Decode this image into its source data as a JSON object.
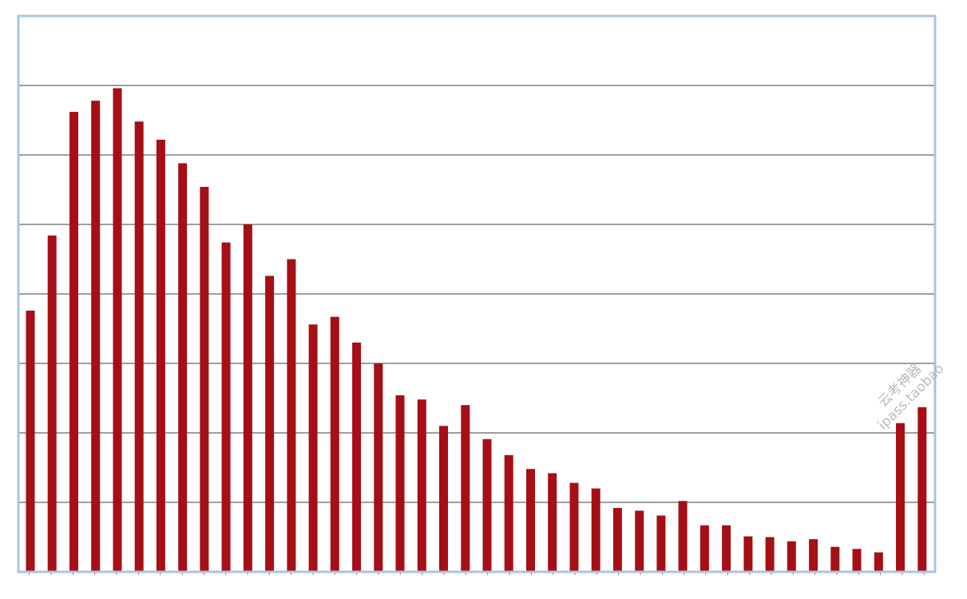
{
  "chart_data": {
    "type": "bar",
    "title": "",
    "xlabel": "",
    "ylabel": "",
    "ylim": [
      0,
      8
    ],
    "grid": true,
    "legend": "none",
    "bar_color": "#a50f15",
    "frame_color": "#a9c3e6",
    "grid_color": "#7f7f7f",
    "values": [
      3.76,
      4.84,
      6.62,
      6.78,
      6.96,
      6.48,
      6.22,
      5.88,
      5.54,
      4.74,
      5.0,
      4.26,
      4.5,
      3.56,
      3.67,
      3.3,
      3.0,
      2.54,
      2.48,
      2.1,
      2.4,
      1.91,
      1.68,
      1.48,
      1.42,
      1.28,
      1.2,
      0.92,
      0.88,
      0.81,
      1.02,
      0.67,
      0.67,
      0.51,
      0.5,
      0.44,
      0.47,
      0.36,
      0.33,
      0.28,
      2.14,
      2.37
    ]
  },
  "watermark": {
    "line1": "云考神器",
    "line2": "ipass.taobao"
  }
}
